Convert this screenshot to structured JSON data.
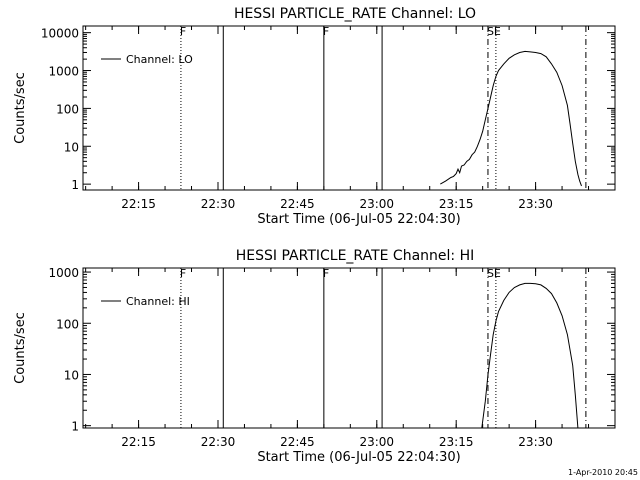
{
  "footer": {
    "timestamp": "1-Apr-2010 20:45"
  },
  "chart_data": [
    {
      "type": "line",
      "title": "HESSI PARTICLE_RATE Channel: LO",
      "xlabel": "Start Time (06-Jul-05 22:04:30)",
      "ylabel": "Counts/sec",
      "y_scale": "log",
      "xlim": [
        "22:04:30",
        "23:45:00"
      ],
      "ylim": [
        0.7,
        15000
      ],
      "x_ticks": [
        "22:15",
        "22:30",
        "22:45",
        "23:00",
        "23:15",
        "23:30"
      ],
      "y_ticks": [
        "1",
        "10",
        "100",
        "1000",
        "10000"
      ],
      "legend": {
        "position": "top-left",
        "label": "Channel: LO"
      },
      "markers": [
        {
          "time": "22:23:00",
          "style": "dotted",
          "label": "F"
        },
        {
          "time": "22:31:00",
          "style": "solid",
          "label": ""
        },
        {
          "time": "22:50:00",
          "style": "solid",
          "label": "F"
        },
        {
          "time": "23:01:00",
          "style": "solid",
          "label": ""
        },
        {
          "time": "23:21:00",
          "style": "dashdot",
          "label": "SE"
        },
        {
          "time": "23:22:30",
          "style": "dotted",
          "label": ""
        },
        {
          "time": "23:39:30",
          "style": "dashdot",
          "label": ""
        }
      ],
      "series": [
        {
          "x": [
            "23:12:00",
            "23:13:00",
            "23:14:00",
            "23:14:30",
            "23:15:00",
            "23:15:20",
            "23:15:40",
            "23:16:00",
            "23:16:30",
            "23:17:00",
            "23:17:30",
            "23:18:00",
            "23:18:30",
            "23:19:00",
            "23:19:30",
            "23:20:00",
            "23:20:30",
            "23:21:00",
            "23:21:30",
            "23:22:00",
            "23:22:30",
            "23:23:00",
            "23:24:00",
            "23:25:00",
            "23:26:00",
            "23:27:00",
            "23:28:00",
            "23:29:00",
            "23:30:00",
            "23:31:00",
            "23:32:00",
            "23:33:00",
            "23:34:00",
            "23:35:00",
            "23:36:00",
            "23:36:30",
            "23:37:00",
            "23:37:30",
            "23:38:00",
            "23:38:20",
            "23:38:40"
          ],
          "y": [
            1,
            1.2,
            1.5,
            1.6,
            1.9,
            2.5,
            2.0,
            3.0,
            3.2,
            4.0,
            4.5,
            6,
            7,
            10,
            15,
            25,
            50,
            100,
            200,
            400,
            700,
            1000,
            1500,
            2100,
            2600,
            3000,
            3200,
            3100,
            3000,
            2800,
            2300,
            1500,
            900,
            400,
            120,
            40,
            12,
            4,
            1.8,
            1.2,
            0.9
          ]
        }
      ]
    },
    {
      "type": "line",
      "title": "HESSI PARTICLE_RATE Channel: HI",
      "xlabel": "Start Time (06-Jul-05 22:04:30)",
      "ylabel": "Counts/sec",
      "y_scale": "log",
      "xlim": [
        "22:04:30",
        "23:45:00"
      ],
      "ylim": [
        0.9,
        1200
      ],
      "x_ticks": [
        "22:15",
        "22:30",
        "22:45",
        "23:00",
        "23:15",
        "23:30"
      ],
      "y_ticks": [
        "1",
        "10",
        "100",
        "1000"
      ],
      "legend": {
        "position": "top-left",
        "label": "Channel: HI"
      },
      "markers": [
        {
          "time": "22:23:00",
          "style": "dotted",
          "label": "F"
        },
        {
          "time": "22:31:00",
          "style": "solid",
          "label": ""
        },
        {
          "time": "22:50:00",
          "style": "solid",
          "label": "F"
        },
        {
          "time": "23:01:00",
          "style": "solid",
          "label": ""
        },
        {
          "time": "23:21:00",
          "style": "dashdot",
          "label": "SE"
        },
        {
          "time": "23:22:30",
          "style": "dotted",
          "label": ""
        },
        {
          "time": "23:39:30",
          "style": "dashdot",
          "label": ""
        }
      ],
      "series": [
        {
          "x": [
            "23:19:50",
            "23:20:30",
            "23:21:00",
            "23:21:30",
            "23:22:00",
            "23:22:30",
            "23:23:00",
            "23:24:00",
            "23:25:00",
            "23:26:00",
            "23:27:00",
            "23:28:00",
            "23:29:00",
            "23:30:00",
            "23:31:00",
            "23:32:00",
            "23:33:00",
            "23:34:00",
            "23:35:00",
            "23:36:00",
            "23:37:00",
            "23:37:30",
            "23:38:00"
          ],
          "y": [
            0.9,
            3,
            10,
            25,
            60,
            110,
            170,
            280,
            400,
            500,
            560,
            600,
            600,
            590,
            560,
            480,
            380,
            250,
            140,
            60,
            15,
            4,
            0.9
          ]
        }
      ]
    }
  ]
}
